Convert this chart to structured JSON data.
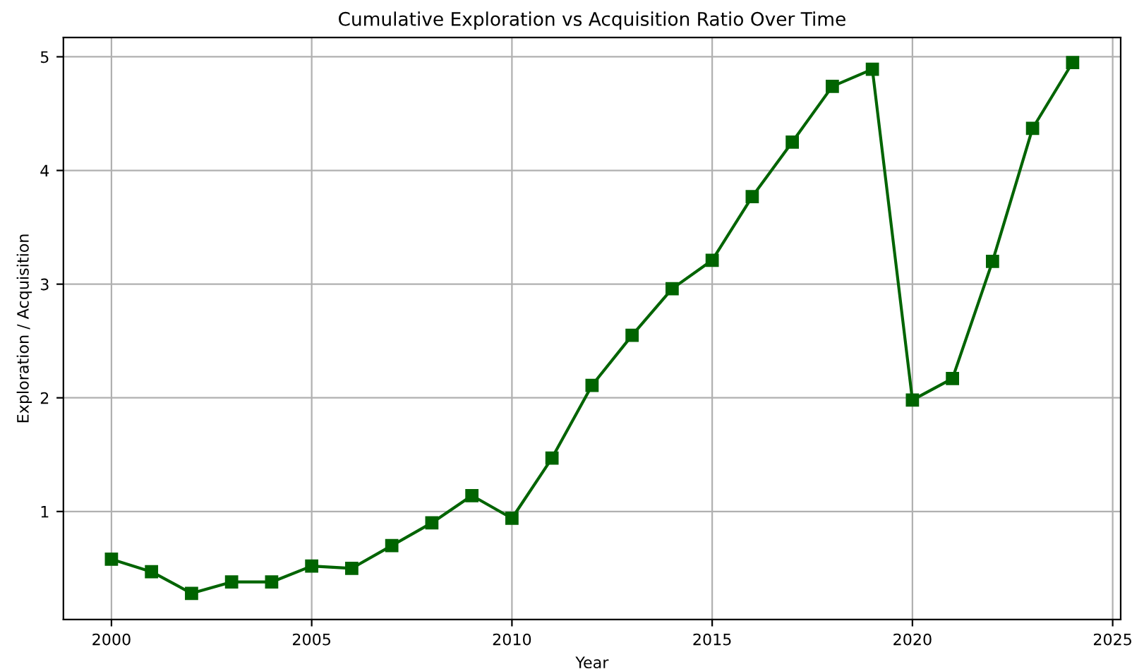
{
  "chart_data": {
    "type": "line",
    "title": "Cumulative Exploration vs Acquisition Ratio Over Time",
    "xlabel": "Year",
    "ylabel": "Exploration / Acquisition",
    "x": [
      2000,
      2001,
      2002,
      2003,
      2004,
      2005,
      2006,
      2007,
      2008,
      2009,
      2010,
      2011,
      2012,
      2013,
      2014,
      2015,
      2016,
      2017,
      2018,
      2019,
      2020,
      2021,
      2022,
      2023,
      2024
    ],
    "series": [
      {
        "color": "#006400",
        "values": [
          0.58,
          0.47,
          0.28,
          0.38,
          0.38,
          0.52,
          0.5,
          0.7,
          0.9,
          1.14,
          0.94,
          1.47,
          2.11,
          2.55,
          2.96,
          3.21,
          3.77,
          4.25,
          4.74,
          4.89,
          1.98,
          2.17,
          3.2,
          4.37,
          4.95
        ]
      }
    ],
    "xlim": [
      1998.8,
      2025.2
    ],
    "ylim": [
      0.05,
      5.17
    ],
    "xticks": [
      2000,
      2005,
      2010,
      2015,
      2020,
      2025
    ],
    "yticks": [
      1,
      2,
      3,
      4,
      5
    ],
    "grid": true,
    "marker": "square",
    "line_style": "solid"
  }
}
